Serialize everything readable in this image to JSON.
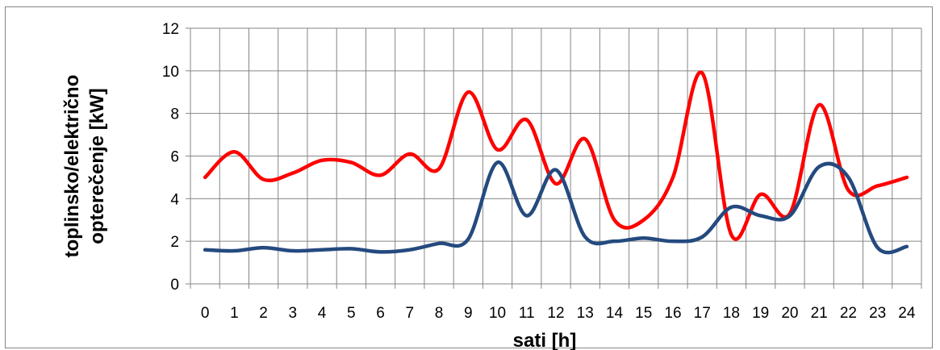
{
  "chart_data": {
    "type": "line",
    "x": [
      0,
      1,
      2,
      3,
      4,
      5,
      6,
      7,
      8,
      9,
      10,
      11,
      12,
      13,
      14,
      15,
      16,
      17,
      18,
      19,
      20,
      21,
      22,
      23,
      24
    ],
    "xlabel": "sati [h]",
    "ylabel_lines": [
      "toplinsko/električno",
      "opterečenje [kW]"
    ],
    "ylim": [
      0,
      12
    ],
    "yticks": [
      0,
      2,
      4,
      6,
      8,
      10,
      12
    ],
    "grid": true,
    "legend": "none",
    "series": [
      {
        "color": "#ff0000",
        "values": [
          5.0,
          6.2,
          4.9,
          5.2,
          5.8,
          5.7,
          5.1,
          6.1,
          5.4,
          9.0,
          6.3,
          7.7,
          4.7,
          6.8,
          3.0,
          3.0,
          5.0,
          9.9,
          2.3,
          4.2,
          3.3,
          8.4,
          4.4,
          4.6,
          5.0
        ]
      },
      {
        "color": "#244a7f",
        "values": [
          1.6,
          1.55,
          1.7,
          1.55,
          1.6,
          1.65,
          1.5,
          1.6,
          1.9,
          2.1,
          5.7,
          3.2,
          5.35,
          2.2,
          2.0,
          2.15,
          2.0,
          2.2,
          3.6,
          3.2,
          3.2,
          5.5,
          5.0,
          1.7,
          1.75
        ]
      }
    ]
  }
}
